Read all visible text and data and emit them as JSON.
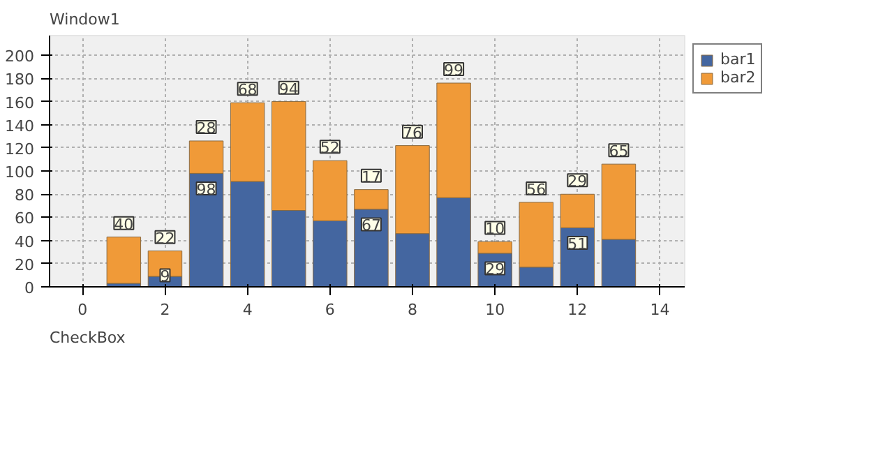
{
  "chart_data": {
    "type": "bar",
    "stacked": true,
    "x": [
      1,
      2,
      3,
      4,
      5,
      6,
      7,
      8,
      9,
      10,
      11,
      12,
      13
    ],
    "series": [
      {
        "name": "bar1",
        "color": "#4466a0",
        "values": [
          3,
          9,
          98,
          91,
          66,
          57,
          67,
          46,
          77,
          29,
          17,
          51,
          41
        ],
        "value_labels": [
          null,
          "9",
          "98",
          null,
          null,
          null,
          "67",
          null,
          null,
          "29",
          null,
          "51",
          null
        ]
      },
      {
        "name": "bar2",
        "color": "#f09a38",
        "values": [
          40,
          22,
          28,
          68,
          94,
          52,
          17,
          76,
          99,
          10,
          56,
          29,
          65
        ],
        "value_labels": [
          "40",
          "22",
          "28",
          "68",
          "94",
          "52",
          "17",
          "76",
          "99",
          "10",
          "56",
          "29",
          "65"
        ]
      }
    ],
    "xlim": [
      -0.8,
      14.6
    ],
    "ylim": [
      0,
      217
    ],
    "xticks": [
      0,
      2,
      4,
      6,
      8,
      10,
      12,
      14
    ],
    "yticks": [
      0,
      20,
      40,
      60,
      80,
      100,
      120,
      140,
      160,
      180,
      200
    ],
    "grid": true,
    "legend": "top right",
    "annotations": [
      "Window1",
      "CheckBox"
    ]
  }
}
